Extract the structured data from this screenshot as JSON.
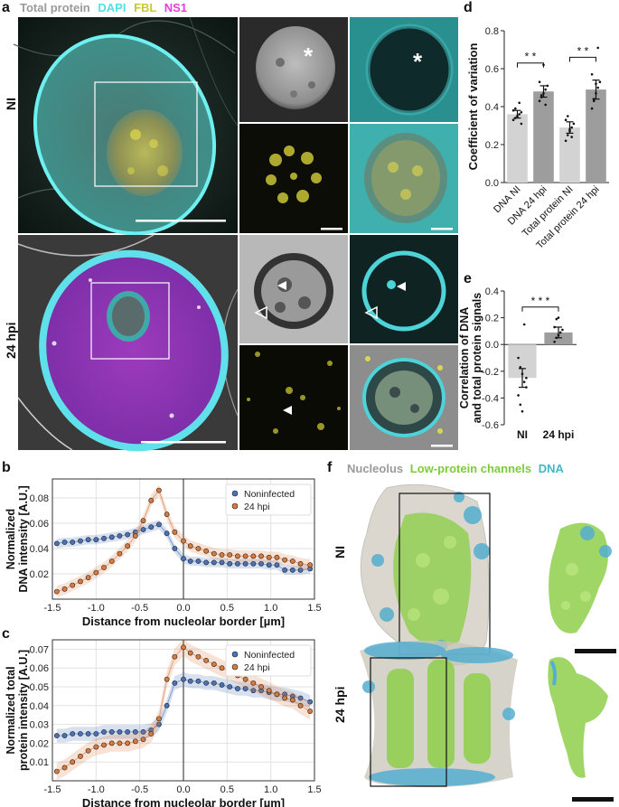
{
  "panel_a": {
    "label": "a",
    "legend": [
      {
        "text": "Total protein",
        "color": "#9a9a9a"
      },
      {
        "text": "DAPI",
        "color": "#4fe3e6"
      },
      {
        "text": "FBL",
        "color": "#c9c92e"
      },
      {
        "text": "NS1",
        "color": "#e13fd7"
      }
    ],
    "row_labels": [
      "NI",
      "24 hpi"
    ],
    "markers": {
      "asterisk": "*"
    }
  },
  "panel_b": {
    "label": "b",
    "chart_data": {
      "type": "line",
      "xlabel": "Distance from nucleolar border [µm]",
      "ylabel": "Normalized DNA intensity [A.U.]",
      "ylabel_lines": [
        "Normalized",
        "DNA intensity [A.U.]"
      ],
      "xlim": [
        -1.5,
        1.5
      ],
      "ylim": [
        0,
        0.095
      ],
      "xticks": [
        "-1.5",
        "-1.0",
        "-0.5",
        "0.0",
        "0.5",
        "1.0",
        "1.5"
      ],
      "yticks": [
        "0.02",
        "0.04",
        "0.06",
        "0.08"
      ],
      "legend_position": "top-right",
      "grid": true,
      "series": [
        {
          "name": "Noninfected",
          "color": "#4a72b8",
          "x": [
            -1.45,
            -1.36,
            -1.27,
            -1.18,
            -1.09,
            -1.0,
            -0.91,
            -0.82,
            -0.73,
            -0.64,
            -0.55,
            -0.46,
            -0.37,
            -0.28,
            -0.19,
            -0.1,
            0.0,
            0.08,
            0.17,
            0.26,
            0.35,
            0.44,
            0.53,
            0.62,
            0.71,
            0.8,
            0.89,
            0.98,
            1.07,
            1.16,
            1.25,
            1.34,
            1.45
          ],
          "y": [
            0.044,
            0.045,
            0.045,
            0.046,
            0.047,
            0.047,
            0.048,
            0.049,
            0.05,
            0.051,
            0.053,
            0.055,
            0.057,
            0.059,
            0.052,
            0.04,
            0.032,
            0.03,
            0.03,
            0.029,
            0.029,
            0.029,
            0.028,
            0.028,
            0.028,
            0.028,
            0.028,
            0.027,
            0.027,
            0.023,
            0.023,
            0.023,
            0.024
          ]
        },
        {
          "name": "24 hpi",
          "color": "#d97a3f",
          "x": [
            -1.45,
            -1.36,
            -1.27,
            -1.18,
            -1.09,
            -1.0,
            -0.91,
            -0.82,
            -0.73,
            -0.64,
            -0.55,
            -0.46,
            -0.37,
            -0.28,
            -0.19,
            -0.1,
            0.0,
            0.08,
            0.17,
            0.26,
            0.35,
            0.44,
            0.53,
            0.62,
            0.71,
            0.8,
            0.89,
            0.98,
            1.07,
            1.16,
            1.25,
            1.34,
            1.45
          ],
          "y": [
            0.006,
            0.008,
            0.011,
            0.014,
            0.017,
            0.021,
            0.025,
            0.03,
            0.036,
            0.042,
            0.05,
            0.062,
            0.078,
            0.086,
            0.067,
            0.053,
            0.046,
            0.042,
            0.04,
            0.038,
            0.036,
            0.035,
            0.035,
            0.034,
            0.034,
            0.034,
            0.034,
            0.033,
            0.033,
            0.031,
            0.03,
            0.028,
            0.027
          ]
        }
      ]
    }
  },
  "panel_c": {
    "label": "c",
    "chart_data": {
      "type": "line",
      "xlabel": "Distance from nucleolar border [µm]",
      "ylabel": "Normalized total protein intensity [A.U.]",
      "ylabel_lines": [
        "Normalized total",
        "protein intensity [A.U.]"
      ],
      "xlim": [
        -1.5,
        1.5
      ],
      "ylim": [
        0,
        0.075
      ],
      "xticks": [
        "-1.5",
        "-1.0",
        "-0.5",
        "0.0",
        "0.5",
        "1.0",
        "1.5"
      ],
      "yticks": [
        "0.01",
        "0.02",
        "0.03",
        "0.04",
        "0.05",
        "0.06",
        "0.07"
      ],
      "legend_position": "top-right",
      "grid": true,
      "series": [
        {
          "name": "Noninfected",
          "color": "#4a72b8",
          "x": [
            -1.45,
            -1.36,
            -1.27,
            -1.18,
            -1.09,
            -1.0,
            -0.91,
            -0.82,
            -0.73,
            -0.64,
            -0.55,
            -0.46,
            -0.37,
            -0.28,
            -0.19,
            -0.1,
            0.0,
            0.08,
            0.17,
            0.26,
            0.35,
            0.44,
            0.53,
            0.62,
            0.71,
            0.8,
            0.89,
            0.98,
            1.07,
            1.16,
            1.25,
            1.34,
            1.45
          ],
          "y": [
            0.024,
            0.024,
            0.025,
            0.025,
            0.025,
            0.025,
            0.026,
            0.026,
            0.026,
            0.026,
            0.026,
            0.026,
            0.027,
            0.03,
            0.04,
            0.052,
            0.054,
            0.053,
            0.053,
            0.052,
            0.052,
            0.051,
            0.05,
            0.049,
            0.049,
            0.048,
            0.048,
            0.047,
            0.046,
            0.046,
            0.045,
            0.044,
            0.042
          ]
        },
        {
          "name": "24 hpi",
          "color": "#d97a3f",
          "x": [
            -1.45,
            -1.36,
            -1.27,
            -1.18,
            -1.09,
            -1.0,
            -0.91,
            -0.82,
            -0.73,
            -0.64,
            -0.55,
            -0.46,
            -0.37,
            -0.28,
            -0.19,
            -0.1,
            0.0,
            0.08,
            0.17,
            0.26,
            0.35,
            0.44,
            0.53,
            0.62,
            0.71,
            0.8,
            0.89,
            0.98,
            1.07,
            1.16,
            1.25,
            1.34,
            1.45
          ],
          "y": [
            0.005,
            0.007,
            0.01,
            0.013,
            0.016,
            0.018,
            0.019,
            0.02,
            0.02,
            0.02,
            0.021,
            0.022,
            0.025,
            0.033,
            0.054,
            0.066,
            0.071,
            0.068,
            0.066,
            0.064,
            0.062,
            0.06,
            0.058,
            0.056,
            0.054,
            0.052,
            0.05,
            0.048,
            0.046,
            0.044,
            0.043,
            0.04,
            0.037
          ]
        }
      ]
    }
  },
  "panel_d": {
    "label": "d",
    "chart_data": {
      "type": "bar",
      "ylabel": "Coefficient of variation",
      "categories": [
        "DNA NI",
        "DNA 24 hpi",
        "Total protein NI",
        "Total protein 24 hpi"
      ],
      "values": [
        0.36,
        0.48,
        0.29,
        0.49
      ],
      "errors": [
        0.02,
        0.03,
        0.03,
        0.05
      ],
      "colors": [
        "#d3d3d3",
        "#9d9d9d",
        "#d3d3d3",
        "#9d9d9d"
      ],
      "points": [
        [
          0.33,
          0.34,
          0.35,
          0.36,
          0.37,
          0.38,
          0.39,
          0.35,
          0.42,
          0.31
        ],
        [
          0.43,
          0.45,
          0.47,
          0.49,
          0.51,
          0.53,
          0.46,
          0.62,
          0.41
        ],
        [
          0.22,
          0.25,
          0.27,
          0.29,
          0.31,
          0.33,
          0.35,
          0.28,
          0.24
        ],
        [
          0.39,
          0.43,
          0.47,
          0.5,
          0.53,
          0.57,
          0.44,
          0.52,
          0.71
        ]
      ],
      "ylim": [
        0,
        0.8
      ],
      "yticks": [
        "0.0",
        "0.2",
        "0.4",
        "0.6",
        "0.8"
      ],
      "significance": [
        {
          "between": [
            0,
            1
          ],
          "label": "* *"
        },
        {
          "between": [
            2,
            3
          ],
          "label": "* *"
        }
      ]
    }
  },
  "panel_e": {
    "label": "e",
    "chart_data": {
      "type": "bar",
      "ylabel": "Correlation of DNA and total protein signals",
      "ylabel_lines": [
        "Correlation of DNA",
        "and total protein signals"
      ],
      "categories": [
        "NI",
        "24 hpi"
      ],
      "values": [
        -0.25,
        0.09
      ],
      "errors": [
        0.07,
        0.04
      ],
      "colors": [
        "#d3d3d3",
        "#9d9d9d"
      ],
      "points": [
        [
          -0.1,
          -0.17,
          -0.22,
          -0.28,
          -0.32,
          -0.38,
          -0.45,
          -0.5,
          0.15,
          -0.25
        ],
        [
          0.02,
          0.05,
          0.07,
          0.09,
          0.11,
          0.13,
          0.19,
          0.2
        ]
      ],
      "ylim": [
        -0.6,
        0.4
      ],
      "yticks": [
        "-0.6",
        "-0.4",
        "-0.2",
        "0.0",
        "0.2",
        "0.4"
      ],
      "significance": [
        {
          "between": [
            0,
            1
          ],
          "label": "* * *"
        }
      ]
    }
  },
  "panel_f": {
    "label": "f",
    "legend": [
      {
        "text": "Nucleolus",
        "color": "#9a9a9a"
      },
      {
        "text": "Low-protein channels",
        "color": "#7ccc3a"
      },
      {
        "text": "DNA",
        "color": "#3fb8c8"
      }
    ],
    "row_labels": [
      "NI",
      "24 hpi"
    ]
  }
}
